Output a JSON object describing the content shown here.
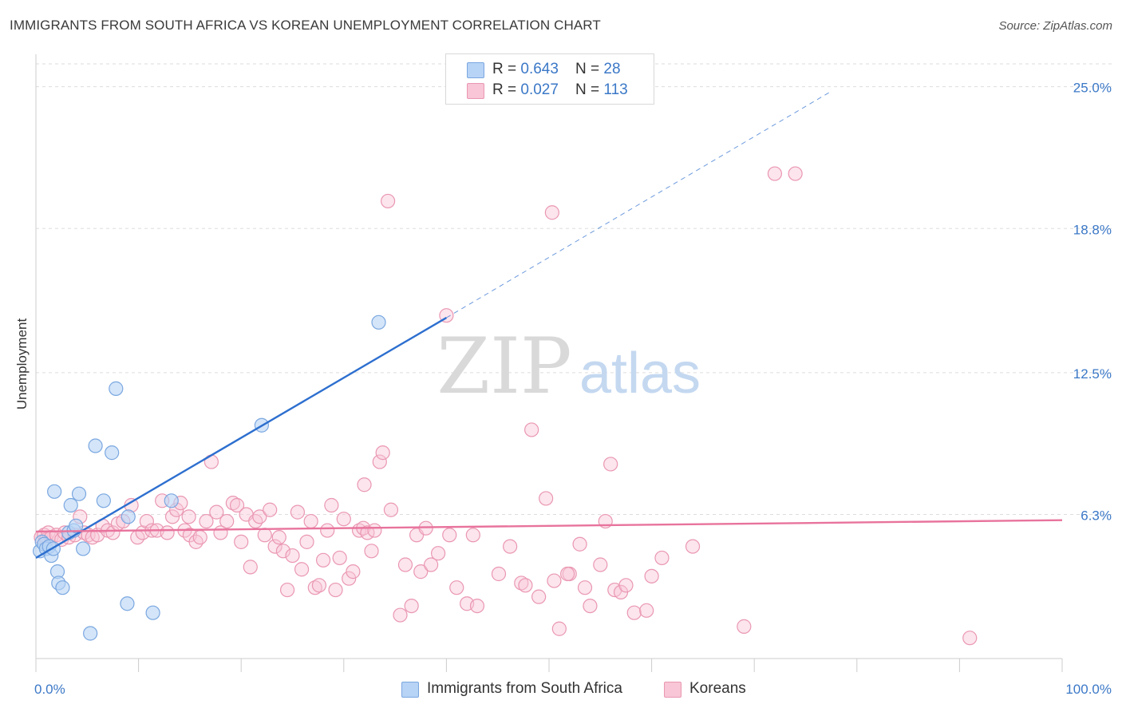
{
  "title": "IMMIGRANTS FROM SOUTH AFRICA VS KOREAN UNEMPLOYMENT CORRELATION CHART",
  "source": "Source: ZipAtlas.com",
  "watermark": {
    "zip": "ZIP",
    "atlas": "atlas"
  },
  "legend": {
    "series1": {
      "r_label": "R = ",
      "r_value": "0.643",
      "n_label": "N = ",
      "n_value": "28"
    },
    "series2": {
      "r_label": "R = ",
      "r_value": "0.027",
      "n_label": "N = ",
      "n_value": "113"
    }
  },
  "bottom_legend": {
    "series1": "Immigrants from South Africa",
    "series2": "Koreans"
  },
  "colors": {
    "series1_fill": "#b7d3f5",
    "series1_stroke": "#7aa7e0",
    "series1_line": "#2d6fcf",
    "series2_fill": "#f8c6d6",
    "series2_stroke": "#ea97b1",
    "series2_line": "#e8739c",
    "tick_text": "#3b78c7",
    "grid": "#dddddd"
  },
  "chart_data": {
    "type": "scatter",
    "title": "IMMIGRANTS FROM SOUTH AFRICA VS KOREAN UNEMPLOYMENT CORRELATION CHART",
    "xlabel": "",
    "ylabel": "Unemployment",
    "xlim": [
      0,
      100
    ],
    "ylim": [
      0,
      26
    ],
    "x_tick_labels": [
      "0.0%",
      "100.0%"
    ],
    "y_ticks": [
      6.3,
      12.5,
      18.8,
      25.0
    ],
    "y_tick_labels": [
      "6.3%",
      "12.5%",
      "18.8%",
      "25.0%"
    ],
    "grid": true,
    "series": [
      {
        "name": "Immigrants from South Africa",
        "R": 0.643,
        "N": 28,
        "points": [
          [
            0.4,
            4.7
          ],
          [
            0.6,
            5.1
          ],
          [
            0.8,
            5.0
          ],
          [
            1.0,
            4.8
          ],
          [
            1.3,
            4.9
          ],
          [
            1.5,
            4.5
          ],
          [
            1.7,
            4.8
          ],
          [
            1.8,
            7.3
          ],
          [
            2.1,
            3.8
          ],
          [
            2.2,
            3.3
          ],
          [
            2.6,
            3.1
          ],
          [
            3.2,
            5.5
          ],
          [
            3.4,
            6.7
          ],
          [
            3.7,
            5.6
          ],
          [
            3.9,
            5.8
          ],
          [
            4.2,
            7.2
          ],
          [
            4.6,
            4.8
          ],
          [
            5.3,
            1.1
          ],
          [
            5.8,
            9.3
          ],
          [
            6.6,
            6.9
          ],
          [
            7.4,
            9.0
          ],
          [
            7.8,
            11.8
          ],
          [
            8.9,
            2.4
          ],
          [
            9.0,
            6.2
          ],
          [
            11.4,
            2.0
          ],
          [
            13.2,
            6.9
          ],
          [
            22.0,
            10.2
          ],
          [
            33.4,
            14.7
          ]
        ],
        "trend": {
          "x0": 0,
          "y0": 4.4,
          "x1": 40,
          "y1": 14.9,
          "dashed_to_x": 77.5,
          "dashed_to_y": 24.8
        }
      },
      {
        "name": "Koreans",
        "R": 0.027,
        "N": 113,
        "points": [
          [
            0.5,
            5.3
          ],
          [
            0.8,
            5.4
          ],
          [
            1.0,
            5.2
          ],
          [
            1.2,
            5.5
          ],
          [
            1.5,
            5.3
          ],
          [
            2.0,
            5.4
          ],
          [
            2.5,
            5.2
          ],
          [
            2.8,
            5.5
          ],
          [
            3.2,
            5.3
          ],
          [
            3.8,
            5.4
          ],
          [
            4.3,
            6.2
          ],
          [
            4.7,
            5.5
          ],
          [
            5.1,
            5.4
          ],
          [
            5.5,
            5.3
          ],
          [
            6.0,
            5.4
          ],
          [
            6.5,
            5.8
          ],
          [
            7.0,
            5.6
          ],
          [
            7.5,
            5.5
          ],
          [
            8.0,
            5.9
          ],
          [
            8.5,
            6.0
          ],
          [
            9.3,
            6.7
          ],
          [
            9.9,
            5.3
          ],
          [
            10.4,
            5.5
          ],
          [
            10.8,
            6.0
          ],
          [
            11.3,
            5.6
          ],
          [
            11.8,
            5.6
          ],
          [
            12.3,
            6.9
          ],
          [
            12.8,
            5.5
          ],
          [
            13.3,
            6.2
          ],
          [
            13.7,
            6.5
          ],
          [
            14.1,
            6.8
          ],
          [
            14.5,
            5.6
          ],
          [
            15.0,
            5.4
          ],
          [
            15.6,
            5.1
          ],
          [
            16.0,
            5.3
          ],
          [
            16.6,
            6.0
          ],
          [
            17.1,
            8.6
          ],
          [
            17.6,
            6.4
          ],
          [
            18.0,
            5.5
          ],
          [
            18.6,
            6.0
          ],
          [
            19.2,
            6.8
          ],
          [
            19.6,
            6.7
          ],
          [
            20.0,
            5.1
          ],
          [
            20.5,
            6.3
          ],
          [
            20.9,
            4.0
          ],
          [
            21.4,
            6.0
          ],
          [
            21.8,
            6.2
          ],
          [
            22.3,
            5.4
          ],
          [
            22.8,
            6.5
          ],
          [
            23.3,
            4.9
          ],
          [
            23.7,
            5.3
          ],
          [
            24.1,
            4.7
          ],
          [
            24.5,
            3.0
          ],
          [
            25.0,
            4.5
          ],
          [
            25.5,
            6.4
          ],
          [
            25.9,
            3.9
          ],
          [
            26.4,
            5.1
          ],
          [
            26.8,
            6.0
          ],
          [
            27.2,
            3.1
          ],
          [
            27.6,
            3.2
          ],
          [
            28.0,
            4.3
          ],
          [
            28.4,
            5.6
          ],
          [
            28.8,
            6.7
          ],
          [
            29.2,
            3.0
          ],
          [
            29.6,
            4.4
          ],
          [
            30.0,
            6.1
          ],
          [
            30.5,
            3.5
          ],
          [
            30.9,
            3.8
          ],
          [
            31.5,
            5.6
          ],
          [
            31.9,
            5.7
          ],
          [
            32.3,
            5.5
          ],
          [
            32.7,
            4.7
          ],
          [
            33.0,
            5.6
          ],
          [
            33.5,
            8.6
          ],
          [
            33.8,
            9.0
          ],
          [
            34.3,
            20.0
          ],
          [
            34.6,
            6.5
          ],
          [
            35.5,
            1.9
          ],
          [
            36.0,
            4.1
          ],
          [
            36.6,
            2.3
          ],
          [
            37.1,
            5.4
          ],
          [
            37.5,
            3.8
          ],
          [
            38.0,
            5.7
          ],
          [
            38.5,
            4.1
          ],
          [
            39.2,
            4.6
          ],
          [
            40.0,
            15.0
          ],
          [
            40.3,
            5.4
          ],
          [
            41.0,
            3.1
          ],
          [
            42.0,
            2.4
          ],
          [
            42.6,
            5.4
          ],
          [
            43.0,
            2.3
          ],
          [
            45.1,
            3.7
          ],
          [
            46.2,
            4.9
          ],
          [
            47.3,
            3.3
          ],
          [
            47.7,
            3.2
          ],
          [
            48.3,
            10.0
          ],
          [
            49.0,
            2.7
          ],
          [
            49.7,
            7.0
          ],
          [
            50.5,
            3.4
          ],
          [
            51.0,
            1.3
          ],
          [
            52.0,
            3.7
          ],
          [
            53.0,
            5.0
          ],
          [
            53.5,
            3.1
          ],
          [
            54.0,
            2.3
          ],
          [
            55.0,
            4.1
          ],
          [
            56.4,
            3.0
          ],
          [
            57.0,
            2.9
          ],
          [
            57.5,
            3.2
          ],
          [
            58.3,
            2.0
          ],
          [
            59.5,
            2.1
          ],
          [
            61.0,
            4.4
          ],
          [
            64.0,
            4.9
          ],
          [
            69.0,
            1.4
          ]
        ],
        "extra_points": [
          [
            60.0,
            3.6
          ],
          [
            56.0,
            8.5
          ],
          [
            55.5,
            6.0
          ],
          [
            51.8,
            3.7
          ],
          [
            50.3,
            19.5
          ],
          [
            72.0,
            21.2
          ],
          [
            74.0,
            21.2
          ],
          [
            91.0,
            0.9
          ],
          [
            32.0,
            7.6
          ],
          [
            14.9,
            6.2
          ]
        ],
        "trend": {
          "x0": 0,
          "y0": 5.55,
          "x1": 100,
          "y1": 6.05
        }
      }
    ]
  }
}
